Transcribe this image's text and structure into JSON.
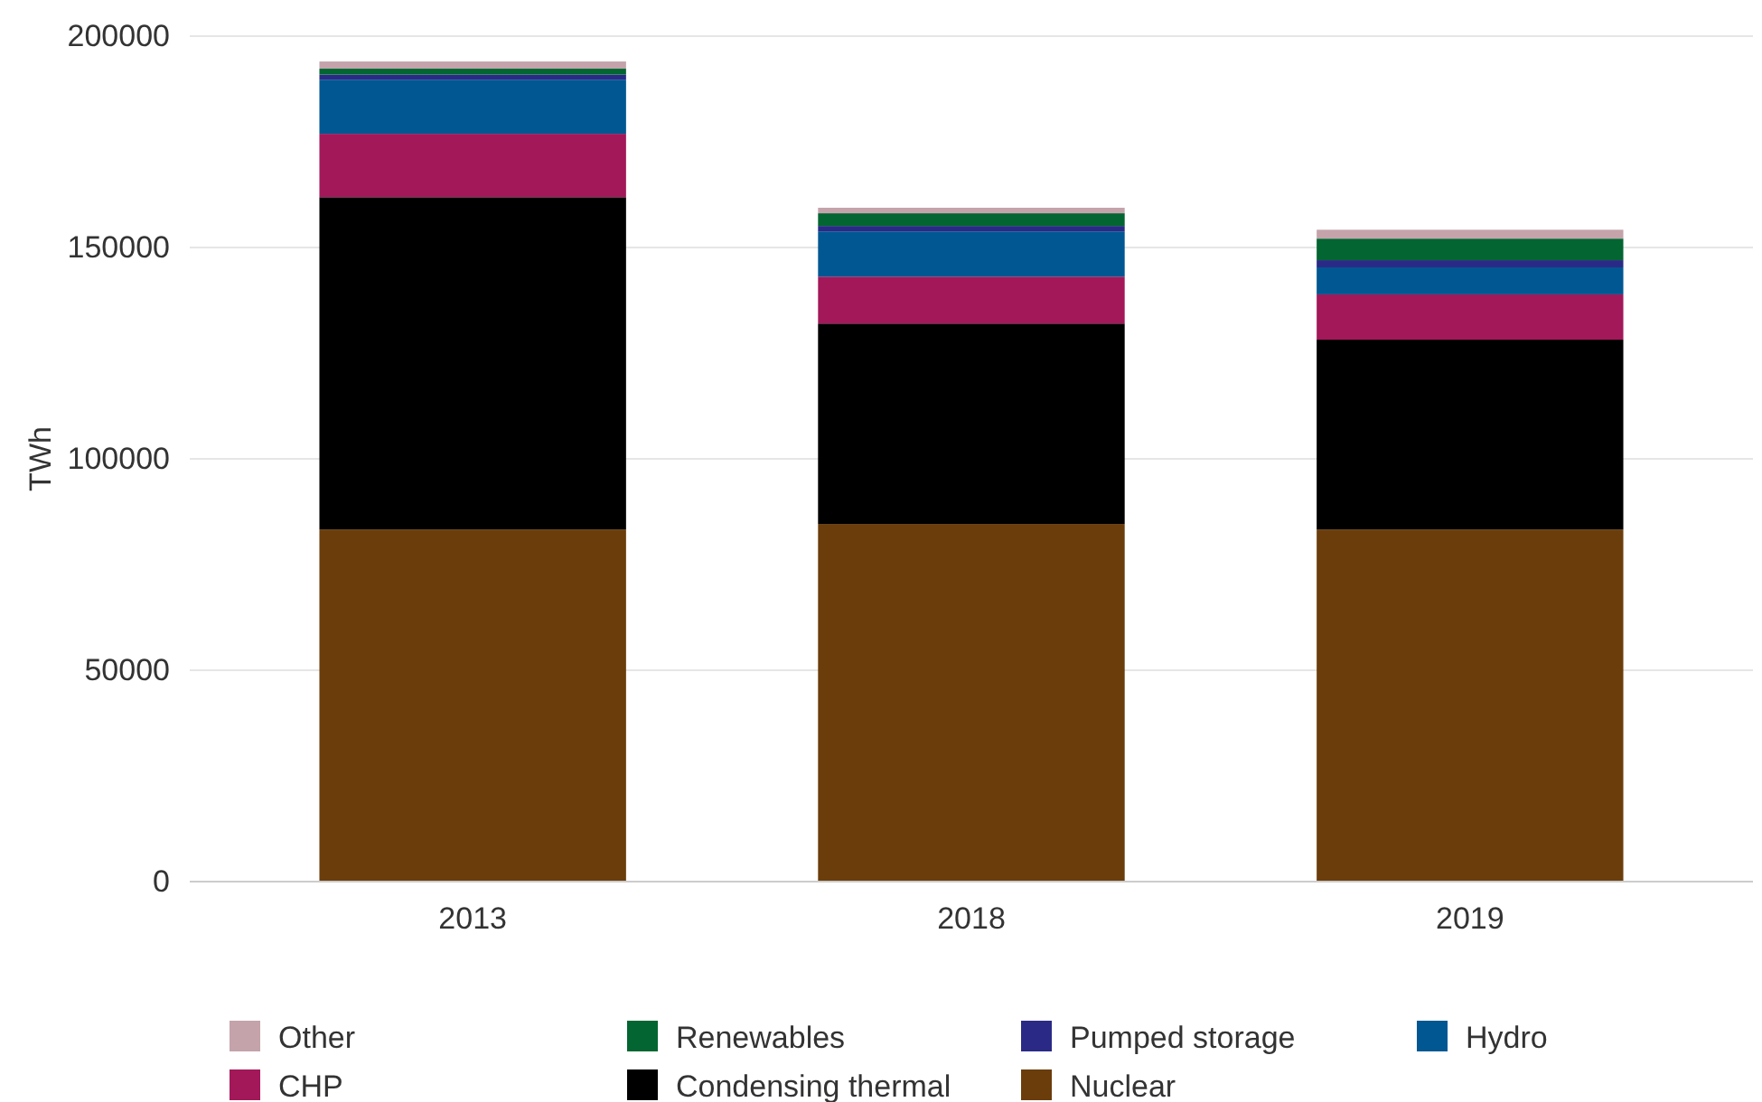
{
  "chart_data": {
    "type": "bar",
    "stacked": true,
    "ylabel": "TWh",
    "categories": [
      "2013",
      "2018",
      "2019"
    ],
    "series": [
      {
        "name": "Nuclear",
        "color": "#6b3d0b",
        "values": [
          83300,
          84600,
          83300
        ]
      },
      {
        "name": "Condensing thermal",
        "color": "#000000",
        "values": [
          78600,
          47400,
          44900
        ]
      },
      {
        "name": "CHP",
        "color": "#a31859",
        "values": [
          15000,
          11100,
          10700
        ]
      },
      {
        "name": "Hydro",
        "color": "#005792",
        "values": [
          12800,
          10700,
          6400
        ]
      },
      {
        "name": "Pumped storage",
        "color": "#2a2a86",
        "values": [
          1200,
          1300,
          1700
        ]
      },
      {
        "name": "Renewables",
        "color": "#036531",
        "values": [
          1400,
          3000,
          5100
        ]
      },
      {
        "name": "Other",
        "color": "#c4a3ab",
        "values": [
          1700,
          1300,
          2100
        ]
      }
    ],
    "ylim": [
      0,
      200000
    ],
    "yticks": [
      0,
      50000,
      100000,
      150000,
      200000
    ],
    "grid": "y",
    "legend": "bottom"
  }
}
